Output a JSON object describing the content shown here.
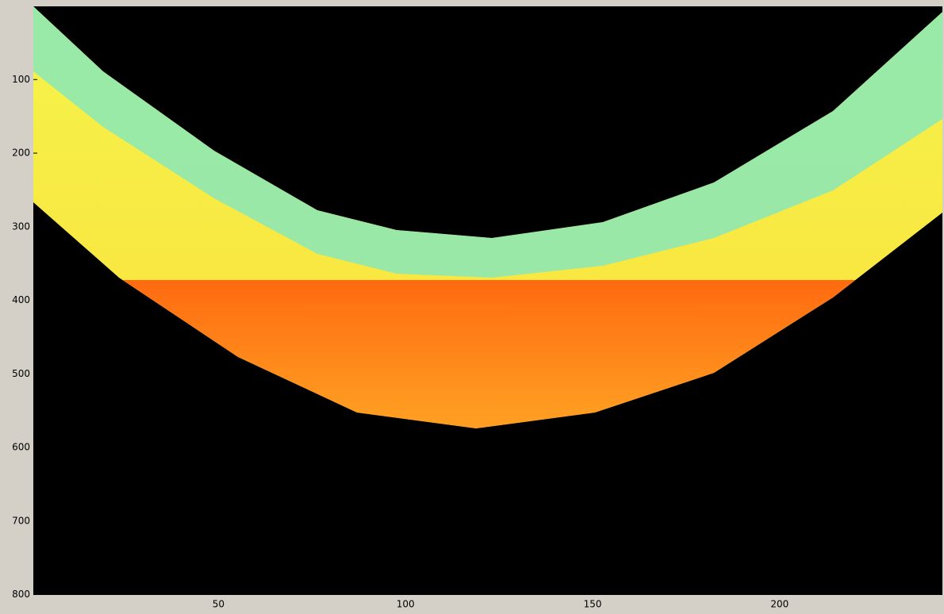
{
  "chart_data": {
    "type": "image",
    "xlim": [
      0.5,
      243.5
    ],
    "xticks": [
      50,
      100,
      150,
      200
    ],
    "ylim": [
      0.5,
      800.5
    ],
    "yticks": [
      100,
      200,
      300,
      400,
      500,
      600,
      700,
      800
    ],
    "y_reversed": true
  }
}
